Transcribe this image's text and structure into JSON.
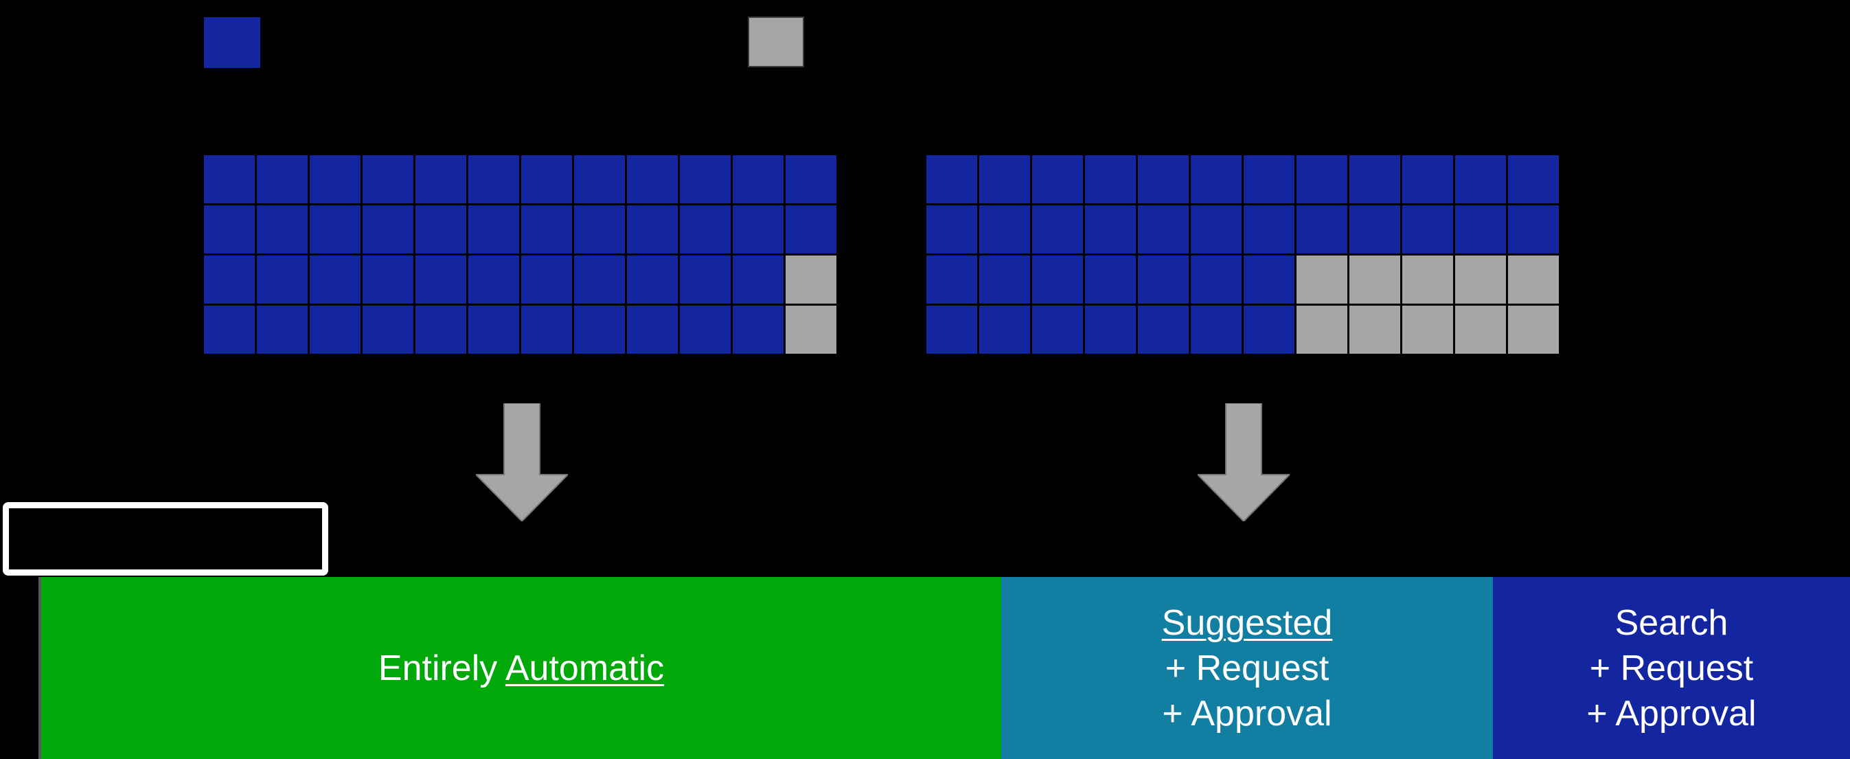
{
  "colors": {
    "background": "#000000",
    "blue": "#1425a0",
    "gray": "#a6a6a6",
    "green": "#00a80a",
    "teal": "#127fa2"
  },
  "legend": [
    {
      "color": "#1425a0",
      "label": ""
    },
    {
      "color": "#a6a6a6",
      "label": ""
    }
  ],
  "grids": [
    {
      "rows": 4,
      "cols": 12,
      "cells": [
        [
          "blue",
          "blue",
          "blue",
          "blue",
          "blue",
          "blue",
          "blue",
          "blue",
          "blue",
          "blue",
          "blue",
          "blue"
        ],
        [
          "blue",
          "blue",
          "blue",
          "blue",
          "blue",
          "blue",
          "blue",
          "blue",
          "blue",
          "blue",
          "blue",
          "blue"
        ],
        [
          "blue",
          "blue",
          "blue",
          "blue",
          "blue",
          "blue",
          "blue",
          "blue",
          "blue",
          "blue",
          "blue",
          "gray"
        ],
        [
          "blue",
          "blue",
          "blue",
          "blue",
          "blue",
          "blue",
          "blue",
          "blue",
          "blue",
          "blue",
          "blue",
          "gray"
        ]
      ]
    },
    {
      "rows": 4,
      "cols": 12,
      "cells": [
        [
          "blue",
          "blue",
          "blue",
          "blue",
          "blue",
          "blue",
          "blue",
          "blue",
          "blue",
          "blue",
          "blue",
          "blue"
        ],
        [
          "blue",
          "blue",
          "blue",
          "blue",
          "blue",
          "blue",
          "blue",
          "blue",
          "blue",
          "blue",
          "blue",
          "blue"
        ],
        [
          "blue",
          "blue",
          "blue",
          "blue",
          "blue",
          "blue",
          "blue",
          "gray",
          "gray",
          "gray",
          "gray",
          "gray"
        ],
        [
          "blue",
          "blue",
          "blue",
          "blue",
          "blue",
          "blue",
          "blue",
          "gray",
          "gray",
          "gray",
          "gray",
          "gray"
        ]
      ]
    }
  ],
  "bands": {
    "automatic": {
      "word1": "Entirely ",
      "word2": "Automatic"
    },
    "suggested": {
      "line1": "Suggested",
      "line2": "+ Request",
      "line3": "+ Approval"
    },
    "search": {
      "line1": "Search",
      "line2": "+ Request",
      "line3": "+ Approval"
    }
  }
}
